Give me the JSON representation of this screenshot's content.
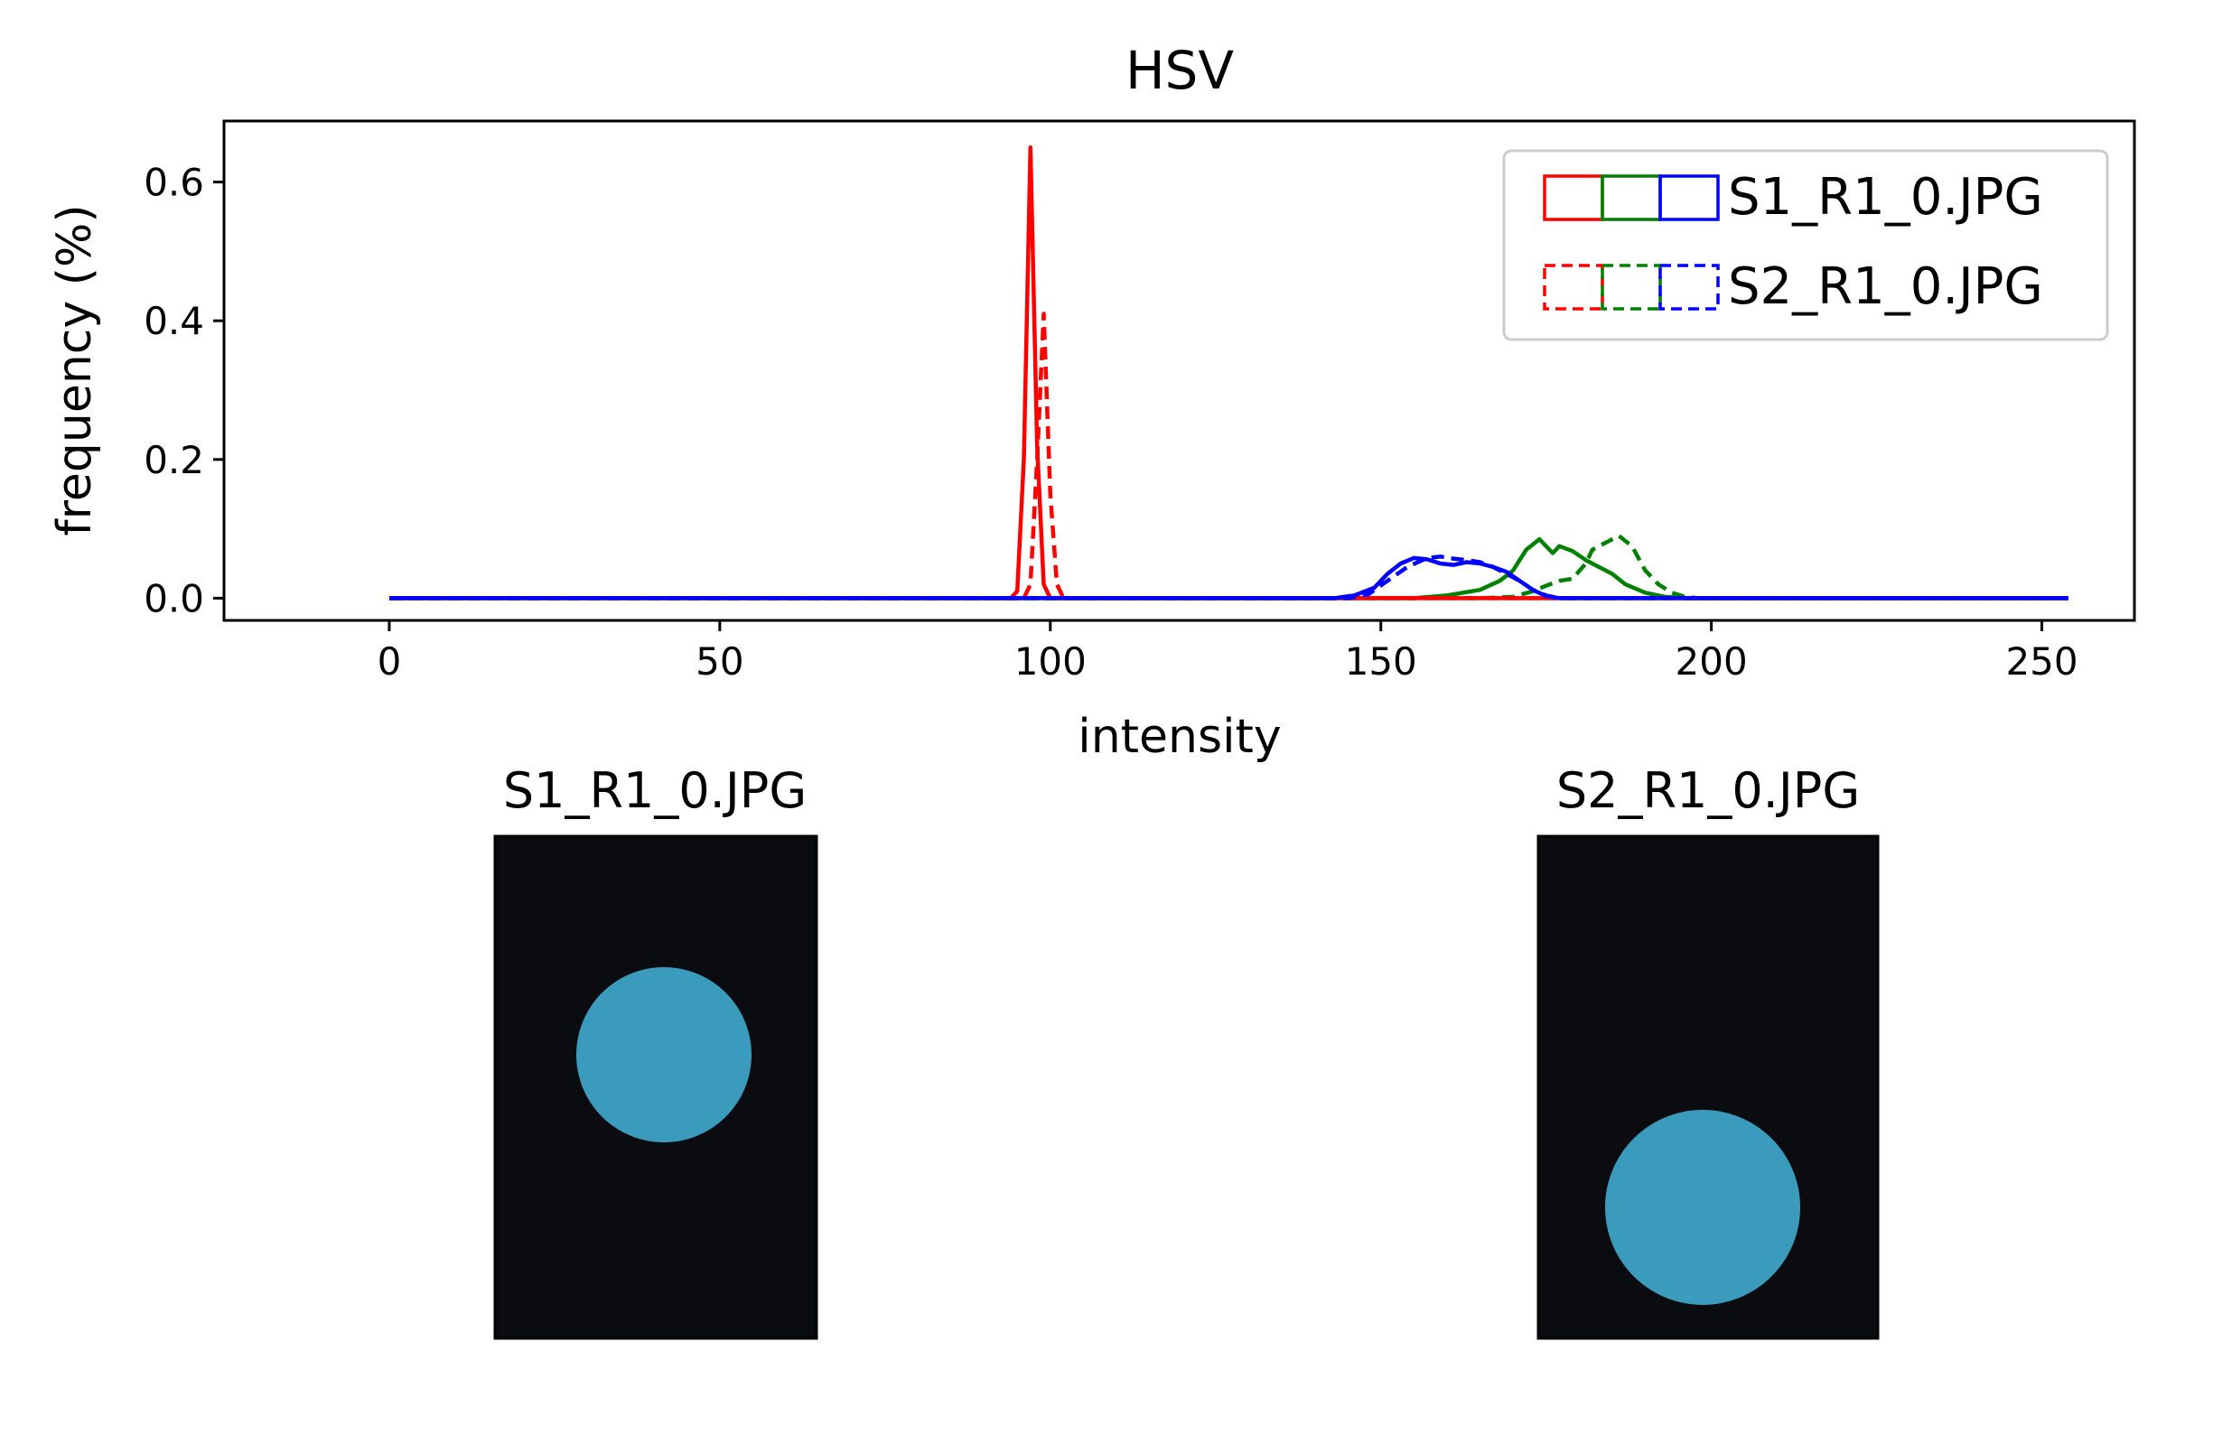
{
  "chart_data": {
    "type": "line",
    "title": "HSV",
    "xlabel": "intensity",
    "ylabel": "frequency (%)",
    "xlim": [
      -25,
      264
    ],
    "ylim": [
      -0.032,
      0.688
    ],
    "xticks": [
      0,
      50,
      100,
      150,
      200,
      250
    ],
    "yticks": [
      0.0,
      0.2,
      0.4,
      0.6
    ],
    "xtick_labels": [
      "0",
      "50",
      "100",
      "150",
      "200",
      "250"
    ],
    "ytick_labels": [
      "0.0",
      "0.2",
      "0.4",
      "0.6"
    ],
    "grid": false,
    "legend": {
      "placement": "top-right",
      "entries": [
        {
          "label": "S1_R1_0.JPG",
          "style": "solid"
        },
        {
          "label": "S2_R1_0.JPG",
          "style": "dashed"
        }
      ]
    },
    "colors": {
      "channel_0": "#ff0000",
      "channel_1": "#008000",
      "channel_2": "#0000ff"
    },
    "series": [
      {
        "image": "S1_R1_0.JPG",
        "channel": 0,
        "style": "solid",
        "points": [
          [
            0,
            0
          ],
          [
            94,
            0
          ],
          [
            95,
            0.01
          ],
          [
            96,
            0.2
          ],
          [
            97,
            0.65
          ],
          [
            98,
            0.22
          ],
          [
            99,
            0.02
          ],
          [
            100,
            0
          ],
          [
            254,
            0
          ]
        ]
      },
      {
        "image": "S1_R1_0.JPG",
        "channel": 1,
        "style": "solid",
        "points": [
          [
            0,
            0
          ],
          [
            155,
            0
          ],
          [
            160,
            0.004
          ],
          [
            165,
            0.012
          ],
          [
            168,
            0.025
          ],
          [
            170,
            0.04
          ],
          [
            172,
            0.07
          ],
          [
            174,
            0.085
          ],
          [
            176,
            0.065
          ],
          [
            177,
            0.075
          ],
          [
            179,
            0.068
          ],
          [
            181,
            0.055
          ],
          [
            183,
            0.045
          ],
          [
            185,
            0.035
          ],
          [
            187,
            0.02
          ],
          [
            190,
            0.008
          ],
          [
            193,
            0.002
          ],
          [
            196,
            0
          ],
          [
            254,
            0
          ]
        ]
      },
      {
        "image": "S1_R1_0.JPG",
        "channel": 2,
        "style": "solid",
        "points": [
          [
            0,
            0
          ],
          [
            143,
            0
          ],
          [
            146,
            0.004
          ],
          [
            149,
            0.015
          ],
          [
            151,
            0.035
          ],
          [
            153,
            0.05
          ],
          [
            155,
            0.058
          ],
          [
            157,
            0.056
          ],
          [
            159,
            0.05
          ],
          [
            161,
            0.048
          ],
          [
            163,
            0.052
          ],
          [
            165,
            0.05
          ],
          [
            167,
            0.045
          ],
          [
            169,
            0.038
          ],
          [
            171,
            0.025
          ],
          [
            173,
            0.012
          ],
          [
            175,
            0.003
          ],
          [
            177,
            0
          ],
          [
            254,
            0
          ]
        ]
      },
      {
        "image": "S2_R1_0.JPG",
        "channel": 0,
        "style": "dashed",
        "points": [
          [
            0,
            0
          ],
          [
            96,
            0
          ],
          [
            97,
            0.02
          ],
          [
            98,
            0.2
          ],
          [
            99,
            0.41
          ],
          [
            100,
            0.15
          ],
          [
            101,
            0.02
          ],
          [
            102,
            0
          ],
          [
            254,
            0
          ]
        ]
      },
      {
        "image": "S2_R1_0.JPG",
        "channel": 1,
        "style": "dashed",
        "points": [
          [
            0,
            0
          ],
          [
            165,
            0
          ],
          [
            170,
            0.002
          ],
          [
            173,
            0.01
          ],
          [
            175,
            0.018
          ],
          [
            177,
            0.025
          ],
          [
            179,
            0.028
          ],
          [
            181,
            0.05
          ],
          [
            182,
            0.07
          ],
          [
            184,
            0.08
          ],
          [
            186,
            0.09
          ],
          [
            188,
            0.075
          ],
          [
            190,
            0.04
          ],
          [
            192,
            0.02
          ],
          [
            194,
            0.008
          ],
          [
            196,
            0.002
          ],
          [
            198,
            0
          ],
          [
            254,
            0
          ]
        ]
      },
      {
        "image": "S2_R1_0.JPG",
        "channel": 2,
        "style": "dashed",
        "points": [
          [
            0,
            0
          ],
          [
            145,
            0
          ],
          [
            148,
            0.005
          ],
          [
            151,
            0.025
          ],
          [
            154,
            0.045
          ],
          [
            157,
            0.058
          ],
          [
            159,
            0.06
          ],
          [
            161,
            0.057
          ],
          [
            163,
            0.055
          ],
          [
            165,
            0.052
          ],
          [
            167,
            0.045
          ],
          [
            169,
            0.035
          ],
          [
            171,
            0.025
          ],
          [
            173,
            0.012
          ],
          [
            175,
            0.004
          ],
          [
            177,
            0
          ],
          [
            254,
            0
          ]
        ]
      }
    ]
  },
  "images": [
    {
      "title": "S1_R1_0.JPG",
      "background": "#0b0c10",
      "disc_color": "#3a9bbd"
    },
    {
      "title": "S2_R1_0.JPG",
      "background": "#0b0c10",
      "disc_color": "#3a9bbd"
    }
  ]
}
